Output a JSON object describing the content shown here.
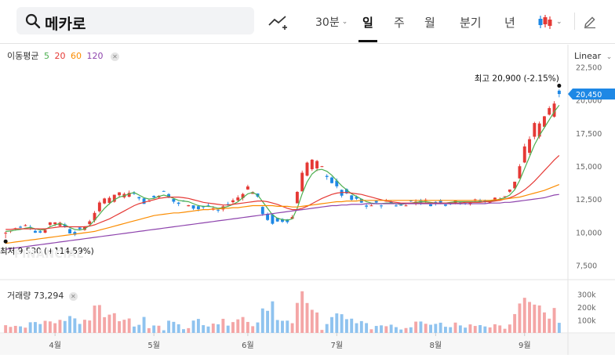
{
  "search": {
    "query": "메카로"
  },
  "toolbar": {
    "interval": "30분",
    "tabs": [
      "일",
      "주",
      "월",
      "분기",
      "년"
    ],
    "active_tab": "일",
    "scale": "Linear"
  },
  "legend": {
    "label": "이동평균",
    "periods": [
      {
        "label": "5",
        "color": "#4caf50"
      },
      {
        "label": "20",
        "color": "#e53935"
      },
      {
        "label": "60",
        "color": "#fb8c00"
      },
      {
        "label": "120",
        "color": "#8e44ad"
      }
    ]
  },
  "watermark": "FINANCIAL",
  "annotations": {
    "high": "최고  20,900 (-2.15%)",
    "low": "최저  9,530 (+114.59%)"
  },
  "volume": {
    "label": "거래량",
    "value": "73,294"
  },
  "colors": {
    "up": "#e53935",
    "down": "#1e88e5",
    "ma5": "#4caf50",
    "ma20": "#e53935",
    "ma60": "#fb8c00",
    "ma120": "#8e44ad",
    "last_price_tag": "#1e88e5"
  },
  "chart_data": {
    "type": "candlestick",
    "title": "",
    "x_labels": [
      "4월",
      "5월",
      "6월",
      "7월",
      "8월",
      "9월"
    ],
    "y_ticks": [
      7500,
      10000,
      12500,
      15000,
      17500,
      20000,
      22500
    ],
    "y_tick_labels": [
      "7,500",
      "10,000",
      "12,500",
      "15,000",
      "17,500",
      "20,000",
      "22,500"
    ],
    "ylim": [
      6400,
      23000
    ],
    "last_price": 20450,
    "last_price_label": "20,450",
    "vol_ticks": [
      "100k",
      "200k",
      "300k"
    ],
    "vol_tick_values": [
      100000,
      200000,
      300000
    ],
    "vol_max": 340000,
    "high": {
      "index": 122,
      "value": 20900
    },
    "low": {
      "index": 0,
      "value": 9530
    },
    "series": [
      {
        "name": "5",
        "values": [
          10050,
          10080,
          10150,
          10200,
          10300,
          10350,
          10250,
          10150,
          10200,
          10400,
          10550,
          10650,
          10550,
          10350,
          10200,
          10150,
          10250,
          10500,
          10900,
          11350,
          11800,
          12150,
          12450,
          12650,
          12750,
          12900,
          13000,
          12800,
          12600,
          12500,
          12550,
          12700,
          12800,
          12700,
          12550,
          12400,
          12350,
          12300,
          12150,
          12000,
          11950,
          11950,
          11900,
          11800,
          11850,
          11950,
          12100,
          12300,
          12600,
          12900,
          13000,
          12800,
          12300,
          11800,
          11300,
          11050,
          10950,
          10900,
          11000,
          11800,
          12900,
          13800,
          14400,
          14700,
          14750,
          14600,
          14300,
          13900,
          13500,
          13200,
          12900,
          12700,
          12500,
          12300,
          12200,
          12150,
          12150,
          12200,
          12200,
          12150,
          12100,
          12150,
          12200,
          12250,
          12300,
          12300,
          12250,
          12200,
          12200,
          12200,
          12250,
          12300,
          12300,
          12300,
          12300,
          12300,
          12300,
          12300,
          12350,
          12400,
          12500,
          12600,
          12800,
          13200,
          13900,
          14800,
          15700,
          16600,
          17300,
          17900,
          18500,
          19100,
          19600
        ]
      },
      {
        "name": "20",
        "values": [
          10200,
          10200,
          10250,
          10250,
          10250,
          10250,
          10250,
          10250,
          10250,
          10300,
          10350,
          10400,
          10400,
          10400,
          10400,
          10400,
          10400,
          10450,
          10550,
          10700,
          10850,
          11000,
          11200,
          11400,
          11600,
          11800,
          12000,
          12150,
          12250,
          12350,
          12450,
          12550,
          12600,
          12650,
          12650,
          12650,
          12600,
          12550,
          12450,
          12350,
          12250,
          12200,
          12150,
          12100,
          12050,
          12050,
          12100,
          12150,
          12200,
          12250,
          12300,
          12350,
          12350,
          12300,
          12200,
          12100,
          11950,
          11800,
          11700,
          11700,
          11800,
          11950,
          12150,
          12350,
          12550,
          12700,
          12850,
          12950,
          13000,
          13000,
          12950,
          12900,
          12850,
          12750,
          12650,
          12550,
          12450,
          12350,
          12300,
          12250,
          12200,
          12200,
          12200,
          12200,
          12200,
          12200,
          12200,
          12200,
          12200,
          12200,
          12200,
          12200,
          12200,
          12250,
          12250,
          12250,
          12250,
          12300,
          12300,
          12350,
          12400,
          12500,
          12600,
          12750,
          12950,
          13200,
          13500,
          13850,
          14250,
          14650,
          15050,
          15450,
          15800
        ]
      },
      {
        "name": "60",
        "values": [
          9150,
          9200,
          9250,
          9300,
          9350,
          9400,
          9450,
          9500,
          9550,
          9600,
          9650,
          9700,
          9750,
          9800,
          9850,
          9900,
          9950,
          10000,
          10050,
          10150,
          10250,
          10350,
          10450,
          10550,
          10650,
          10750,
          10850,
          10950,
          11050,
          11150,
          11250,
          11300,
          11350,
          11400,
          11450,
          11450,
          11500,
          11550,
          11600,
          11650,
          11700,
          11700,
          11750,
          11750,
          11800,
          11800,
          11850,
          11850,
          11900,
          11950,
          12000,
          12000,
          12000,
          12000,
          12000,
          11950,
          11950,
          11950,
          11900,
          11900,
          11950,
          12000,
          12050,
          12100,
          12150,
          12200,
          12250,
          12300,
          12300,
          12350,
          12350,
          12350,
          12400,
          12400,
          12400,
          12400,
          12400,
          12400,
          12400,
          12400,
          12400,
          12400,
          12400,
          12400,
          12400,
          12400,
          12400,
          12400,
          12400,
          12400,
          12400,
          12400,
          12400,
          12400,
          12400,
          12400,
          12400,
          12400,
          12400,
          12450,
          12450,
          12500,
          12550,
          12600,
          12650,
          12750,
          12850,
          12950,
          13050,
          13150,
          13300,
          13450,
          13600
        ]
      },
      {
        "name": "120",
        "values": [
          8700,
          8750,
          8800,
          8850,
          8900,
          8950,
          9000,
          9050,
          9100,
          9150,
          9200,
          9250,
          9300,
          9350,
          9400,
          9450,
          9500,
          9550,
          9600,
          9650,
          9700,
          9750,
          9800,
          9850,
          9900,
          9950,
          10000,
          10050,
          10100,
          10150,
          10200,
          10250,
          10300,
          10350,
          10400,
          10450,
          10500,
          10550,
          10600,
          10650,
          10700,
          10750,
          10800,
          10850,
          10900,
          10950,
          11000,
          11050,
          11100,
          11150,
          11200,
          11250,
          11300,
          11350,
          11400,
          11450,
          11500,
          11550,
          11600,
          11650,
          11700,
          11750,
          11800,
          11850,
          11900,
          11950,
          12000,
          12000,
          12050,
          12050,
          12100,
          12100,
          12100,
          12150,
          12150,
          12150,
          12150,
          12150,
          12150,
          12150,
          12150,
          12150,
          12150,
          12150,
          12150,
          12150,
          12150,
          12150,
          12150,
          12150,
          12150,
          12150,
          12150,
          12150,
          12150,
          12150,
          12150,
          12150,
          12200,
          12200,
          12200,
          12250,
          12250,
          12300,
          12350,
          12400,
          12450,
          12500,
          12550,
          12600,
          12700,
          12800,
          12850
        ]
      }
    ]
  }
}
